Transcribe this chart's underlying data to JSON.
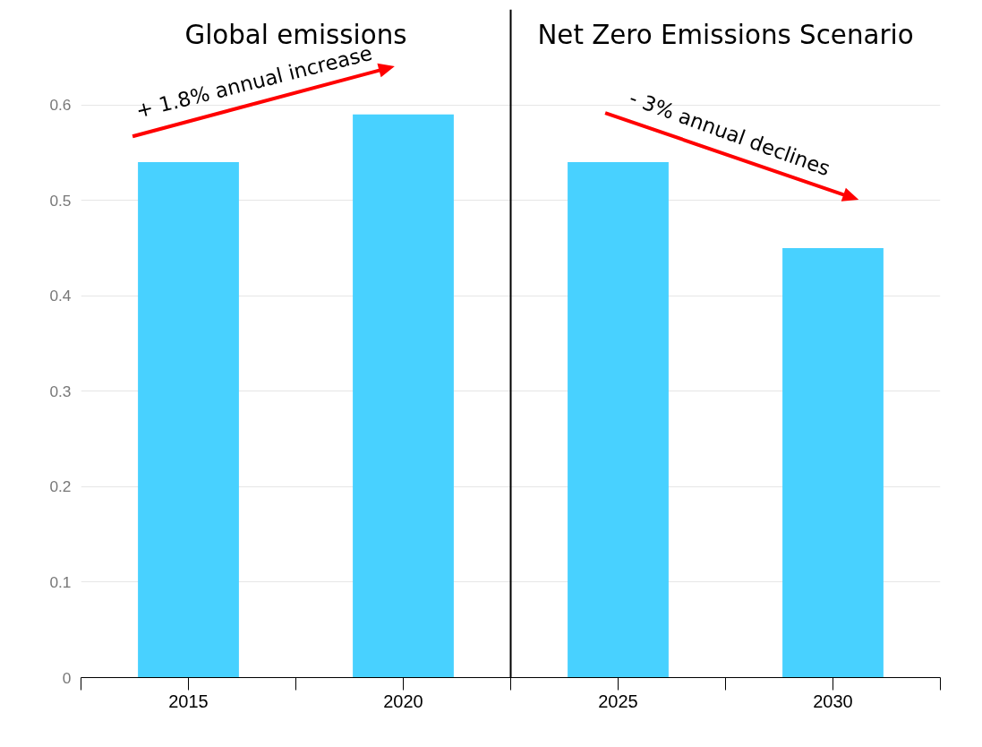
{
  "chart_data": {
    "type": "bar",
    "title": "Global emissions",
    "x": [
      2015,
      2020,
      2025,
      2030
    ],
    "values": [
      0.54,
      0.59,
      0.54,
      0.45
    ],
    "color": "#48d1ff",
    "xlim": [
      2012.5,
      2032.5
    ],
    "xticks": [
      {
        "value": 2012.5,
        "label": null
      },
      2015,
      {
        "value": 2017.5,
        "label": null
      },
      2020,
      {
        "value": 2022.5,
        "label": null
      },
      2025,
      {
        "value": 2027.5,
        "label": null
      },
      2030,
      {
        "value": 2032.5,
        "label": null
      }
    ],
    "ylim": [
      0,
      0.7
    ],
    "yticks": [
      0,
      0.1,
      0.2,
      0.3,
      0.4,
      0.5,
      0.6
    ],
    "grid": "y",
    "ref_lines": [
      {
        "axis": "x",
        "value": 2022.5,
        "label": null,
        "color": "#000000"
      }
    ],
    "annotations": [
      "Net Zero Emissions Scenario",
      "+ 1.8%  annual increase",
      "- 3% annual declines"
    ]
  }
}
